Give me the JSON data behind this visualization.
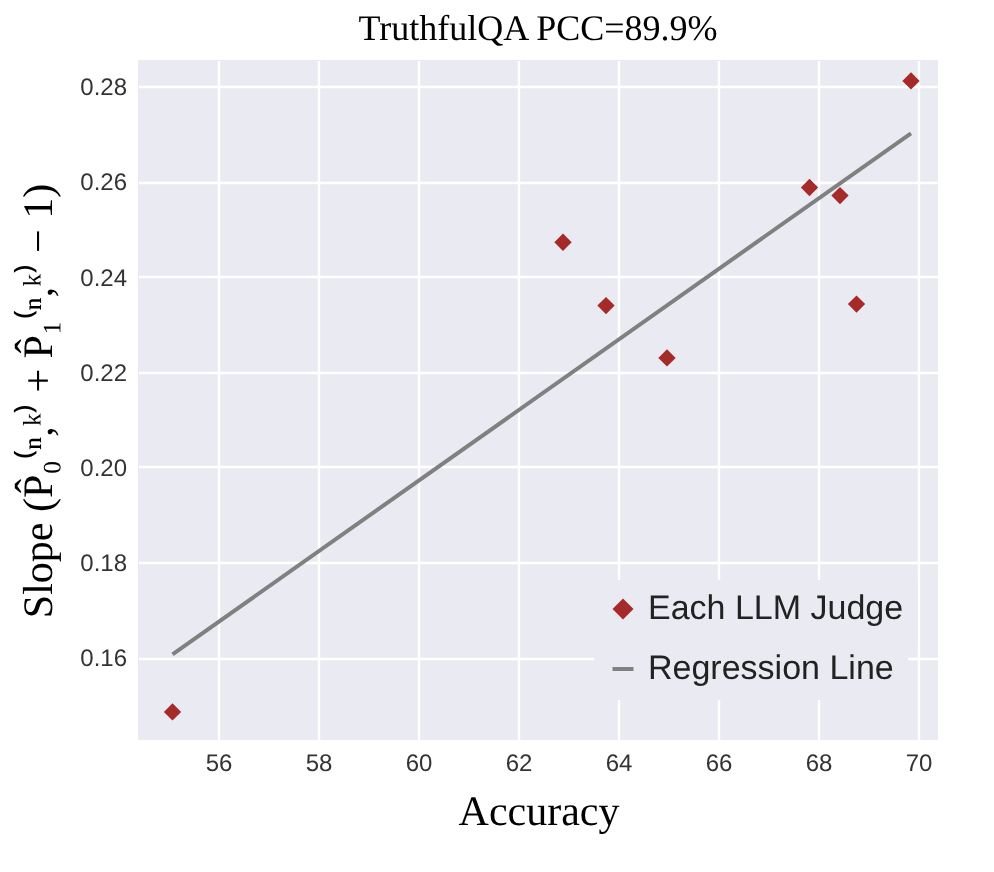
{
  "chart_data": {
    "type": "scatter",
    "title": "TruthfulQA PCC=89.9%",
    "xlabel": "Accuracy",
    "ylabel": "Slope (P̂₀⁽ⁿ,ᵏ⁾ + P̂₁⁽ⁿ,ᵏ⁾ − 1)",
    "series": [
      {
        "name": "Each LLM Judge",
        "marker": "diamond",
        "color": "#a52a2a",
        "x": [
          55.09,
          62.9,
          63.76,
          64.98,
          67.83,
          68.44,
          68.77,
          69.86
        ],
        "values": [
          0.1485,
          0.2472,
          0.2339,
          0.2229,
          0.2587,
          0.257,
          0.2342,
          0.2811
        ]
      },
      {
        "name": "Regression Line",
        "type": "line",
        "marker": "none",
        "color": "#808080",
        "x": [
          55.09,
          69.86
        ],
        "values": [
          0.1606,
          0.2701
        ]
      }
    ],
    "xlim": [
      54.4,
      70.4
    ],
    "ylim": [
      0.1426,
      0.2855
    ],
    "xticks": [
      56,
      58,
      60,
      62,
      64,
      66,
      68,
      70
    ],
    "yticks": [
      0.16,
      0.18,
      {
        "value": 0.2,
        "label": "0.20"
      },
      0.22,
      0.24,
      0.26,
      0.28
    ],
    "grid": true,
    "legend": "bottom right"
  }
}
